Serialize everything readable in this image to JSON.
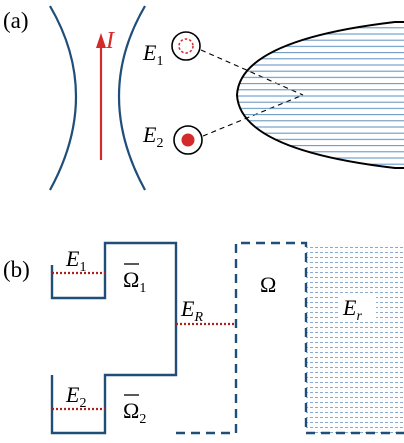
{
  "panel_a": {
    "label": "(a)",
    "current_symbol": "I",
    "state_e1": {
      "symbol": "E",
      "subscript": "1"
    },
    "state_e2": {
      "symbol": "E",
      "subscript": "2"
    }
  },
  "panel_b": {
    "label": "(b)",
    "well_e1": {
      "symbol": "E",
      "subscript": "1"
    },
    "well_e2": {
      "symbol": "E",
      "subscript": "2"
    },
    "omega_bar_1": {
      "symbol": "Ω",
      "subscript": "1"
    },
    "omega_bar_2": {
      "symbol": "Ω",
      "subscript": "2"
    },
    "level_er_big": {
      "symbol": "E",
      "subscript": "R"
    },
    "omega": {
      "symbol": "Ω"
    },
    "reservoir_er": {
      "symbol": "E",
      "subscript": "r"
    }
  },
  "colors": {
    "line_blue": "#1f4e79",
    "accent_red": "#d42a2a",
    "hatch_blue": "#5b8ec0"
  }
}
